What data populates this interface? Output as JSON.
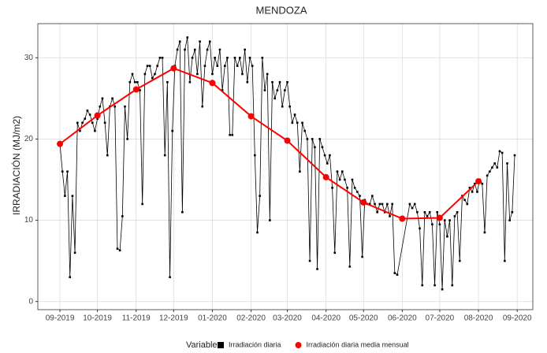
{
  "chart_data": {
    "type": "line",
    "title": "MENDOZA",
    "y_label": "IRRADIACIÓN (MJ/m2)",
    "legend_title": "Variable",
    "legend_position": "bottom",
    "grid": true,
    "xlim": [
      -17.7,
      378.5
    ],
    "ylim": [
      -1,
      34.2
    ],
    "yticks": [
      0,
      10,
      20,
      30
    ],
    "xticks": [
      {
        "value": 0,
        "label": "09-2019"
      },
      {
        "value": 30,
        "label": "10-2019"
      },
      {
        "value": 61,
        "label": "11-2019"
      },
      {
        "value": 91,
        "label": "12-2019"
      },
      {
        "value": 122,
        "label": "01-2020"
      },
      {
        "value": 153,
        "label": "02-2020"
      },
      {
        "value": 182,
        "label": "03-2020"
      },
      {
        "value": 213,
        "label": "04-2020"
      },
      {
        "value": 243,
        "label": "05-2020"
      },
      {
        "value": 274,
        "label": "06-2020"
      },
      {
        "value": 304,
        "label": "07-2020"
      },
      {
        "value": 335,
        "label": "08-2020"
      },
      {
        "value": 366,
        "label": "09-2020"
      }
    ],
    "series": [
      {
        "name": "Irradiación diaria",
        "color": "#000000",
        "marker": "square",
        "x": [
          0,
          2,
          4,
          6,
          8,
          10,
          12,
          14,
          16,
          18,
          20,
          22,
          24,
          26,
          28,
          30,
          32,
          34,
          36,
          38,
          40,
          42,
          44,
          46,
          48,
          50,
          52,
          54,
          56,
          58,
          60,
          62,
          64,
          66,
          68,
          70,
          72,
          74,
          76,
          78,
          80,
          82,
          84,
          86,
          88,
          90,
          92,
          94,
          96,
          98,
          100,
          102,
          104,
          106,
          108,
          110,
          112,
          114,
          116,
          118,
          120,
          122,
          124,
          126,
          128,
          130,
          132,
          134,
          136,
          138,
          140,
          142,
          144,
          146,
          148,
          150,
          152,
          154,
          156,
          158,
          160,
          162,
          164,
          166,
          168,
          170,
          172,
          174,
          176,
          178,
          180,
          182,
          184,
          186,
          188,
          190,
          192,
          194,
          196,
          198,
          200,
          202,
          204,
          206,
          208,
          210,
          212,
          214,
          216,
          218,
          220,
          222,
          224,
          226,
          228,
          230,
          232,
          234,
          236,
          238,
          240,
          242,
          244,
          246,
          248,
          250,
          252,
          254,
          256,
          258,
          260,
          262,
          264,
          266,
          268,
          270,
          280,
          282,
          284,
          286,
          288,
          290,
          292,
          294,
          296,
          298,
          300,
          302,
          304,
          306,
          308,
          310,
          312,
          314,
          316,
          318,
          320,
          322,
          324,
          326,
          328,
          330,
          332,
          334,
          336,
          338,
          340,
          342,
          344,
          346,
          348,
          350,
          352,
          354,
          356,
          358,
          360,
          362,
          364
        ],
        "values": [
          19.4,
          16,
          13,
          16,
          3,
          13,
          6,
          22,
          21,
          22,
          22.5,
          23.5,
          23,
          22,
          21,
          22.5,
          24,
          25,
          22,
          18,
          24,
          25,
          24,
          6.5,
          6.3,
          10.5,
          24,
          20,
          27,
          28,
          27,
          27,
          26,
          12,
          28,
          29,
          29,
          27.5,
          28,
          29,
          30,
          30,
          18,
          27,
          3,
          21,
          29,
          31,
          32,
          11,
          31,
          32.5,
          27,
          30,
          31,
          28,
          32,
          24,
          29,
          31,
          32,
          28,
          30,
          29,
          31,
          26,
          29,
          30,
          20.5,
          20.5,
          30,
          29,
          30,
          28,
          31,
          27,
          30,
          29,
          18,
          8.5,
          13,
          30,
          26,
          28,
          10,
          27,
          25,
          26,
          27,
          24,
          26,
          27,
          24,
          22,
          23,
          22,
          16,
          22,
          21,
          20,
          5,
          20,
          19,
          4,
          20,
          19,
          18,
          17,
          18,
          14,
          6,
          16,
          15,
          16,
          15,
          14,
          4.3,
          15,
          14,
          13.5,
          13,
          5.5,
          12.5,
          12,
          12,
          13,
          12,
          11,
          12,
          12,
          11,
          12,
          10.5,
          12,
          3.5,
          3.3,
          12,
          11.5,
          12,
          11,
          9,
          2,
          11,
          10.5,
          11,
          9.5,
          2,
          11,
          9.5,
          1.5,
          10,
          8,
          10,
          2,
          10.5,
          11,
          5,
          13,
          12.5,
          12,
          14,
          13.5,
          14.5,
          13.5,
          15,
          14.5,
          8.5,
          15.5,
          16,
          16.5,
          17,
          16.5,
          18.5,
          18.3,
          5,
          17,
          10,
          11,
          18
        ]
      },
      {
        "name": "Irradiación diaria media mensual",
        "color": "#ff0000",
        "marker": "circle",
        "x": [
          0,
          30,
          61,
          91,
          122,
          153,
          182,
          213,
          243,
          274,
          304,
          335
        ],
        "values": [
          19.4,
          22.9,
          26.1,
          28.7,
          26.9,
          22.8,
          19.8,
          15.3,
          12.2,
          10.2,
          10.3,
          14.8
        ]
      }
    ]
  }
}
